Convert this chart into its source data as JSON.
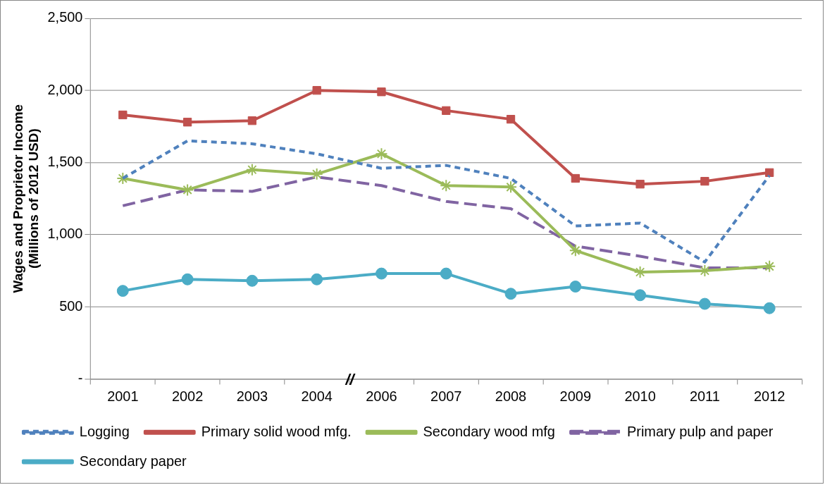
{
  "chart_data": {
    "type": "line",
    "ylabel": "Wages and Proprietor Income\n(Millions of 2012 USD)",
    "categories": [
      "2001",
      "2002",
      "2003",
      "2004",
      "2006",
      "2007",
      "2008",
      "2009",
      "2010",
      "2011",
      "2012"
    ],
    "ylim": [
      0,
      2500
    ],
    "yticks": [
      {
        "value": 0,
        "label": "-"
      },
      {
        "value": 500,
        "label": "500"
      },
      {
        "value": 1000,
        "label": "1,000"
      },
      {
        "value": 1500,
        "label": "1,500"
      },
      {
        "value": 2000,
        "label": "2,000"
      },
      {
        "value": 2500,
        "label": "2,500"
      }
    ],
    "grid": "y",
    "legend": "bottom",
    "annotations": [
      "//"
    ],
    "series": [
      {
        "name": "Logging",
        "color": "#4f81bd",
        "line_style": "dashed",
        "marker": "none",
        "values": [
          1390,
          1650,
          1630,
          1560,
          1460,
          1480,
          1390,
          1060,
          1080,
          810,
          1410
        ]
      },
      {
        "name": "Primary solid wood mfg.",
        "color": "#c0504d",
        "line_style": "solid",
        "marker": "square",
        "values": [
          1830,
          1780,
          1790,
          2000,
          1990,
          1860,
          1800,
          1390,
          1350,
          1370,
          1430
        ]
      },
      {
        "name": "Secondary wood mfg",
        "color": "#9bbb59",
        "line_style": "solid",
        "marker": "cross",
        "values": [
          1390,
          1310,
          1450,
          1420,
          1560,
          1340,
          1330,
          890,
          740,
          750,
          780
        ]
      },
      {
        "name": "Primary pulp and paper",
        "color": "#8064a2",
        "line_style": "longdash",
        "marker": "none",
        "values": [
          1200,
          1310,
          1300,
          1400,
          1340,
          1230,
          1180,
          920,
          850,
          770,
          770
        ]
      },
      {
        "name": "Secondary paper",
        "color": "#4bacc6",
        "line_style": "solid",
        "marker": "circle",
        "values": [
          610,
          690,
          680,
          690,
          730,
          730,
          590,
          640,
          580,
          520,
          490
        ]
      }
    ]
  }
}
